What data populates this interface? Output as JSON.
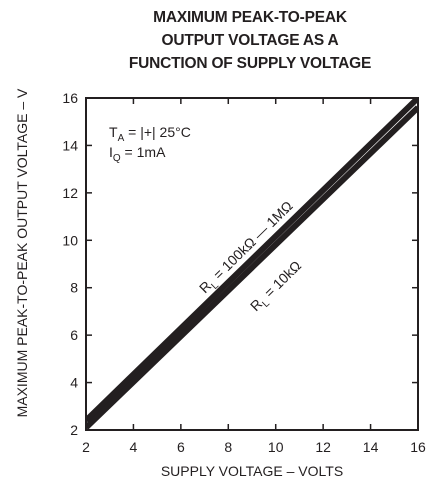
{
  "chart_data": {
    "type": "line",
    "title": [
      "MAXIMUM PEAK-TO-PEAK",
      "OUTPUT VOLTAGE AS A",
      "FUNCTION OF SUPPLY VOLTAGE"
    ],
    "xlabel": "SUPPLY VOLTAGE – VOLTS",
    "ylabel": "MAXIMUM PEAK-TO-PEAK OUTPUT VOLTAGE – V",
    "xlim": [
      2,
      16
    ],
    "ylim": [
      2,
      16
    ],
    "xticks": [
      "2",
      "4",
      "6",
      "8",
      "10",
      "12",
      "14",
      "16"
    ],
    "yticks": [
      "2",
      "4",
      "6",
      "8",
      "10",
      "12",
      "14",
      "16"
    ],
    "grid": false,
    "annotations": [
      {
        "main": "T",
        "sub": "A",
        "rest": " = |+| 25°C"
      },
      {
        "main": "I",
        "sub": "Q",
        "rest": " = 1mA"
      }
    ],
    "series": [
      {
        "name": "R_L = 100kΩ — 1MΩ",
        "label_main": "R",
        "label_sub": "L",
        "label_rest": " = 100kΩ — 1MΩ",
        "x": [
          2,
          16
        ],
        "y": [
          2.4,
          16.0
        ]
      },
      {
        "name": "R_L = 10kΩ",
        "label_main": "R",
        "label_sub": "L",
        "label_rest": " = 10kΩ",
        "x": [
          2,
          16
        ],
        "y": [
          2.1,
          15.6
        ]
      }
    ]
  }
}
